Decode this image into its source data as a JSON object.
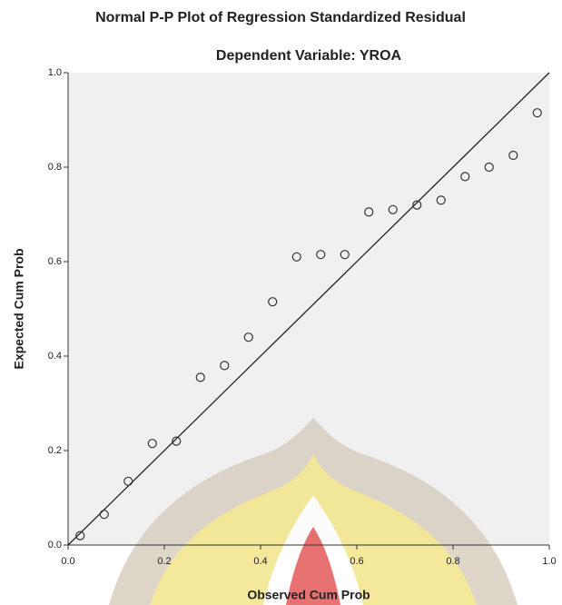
{
  "chart_data": {
    "type": "scatter",
    "title": "Normal P-P Plot of Regression Standardized Residual",
    "subtitle": "Dependent Variable: YROA",
    "xlabel": "Observed Cum Prob",
    "ylabel": "Expected Cum Prob",
    "x": [
      0.025,
      0.075,
      0.125,
      0.175,
      0.225,
      0.275,
      0.325,
      0.375,
      0.425,
      0.475,
      0.525,
      0.575,
      0.625,
      0.675,
      0.725,
      0.775,
      0.825,
      0.875,
      0.925,
      0.975
    ],
    "values": [
      0.02,
      0.065,
      0.135,
      0.215,
      0.22,
      0.355,
      0.38,
      0.44,
      0.515,
      0.61,
      0.615,
      0.615,
      0.705,
      0.71,
      0.72,
      0.73,
      0.78,
      0.8,
      0.825,
      0.915
    ],
    "color": "#333333",
    "xlim": [
      0,
      1
    ],
    "ylim": [
      0,
      1
    ],
    "xticks": [
      {
        "value": 0,
        "label": "0.0"
      },
      0.2,
      0.4,
      0.6,
      0.8,
      {
        "value": 1,
        "label": "1.0"
      }
    ],
    "yticks": [
      {
        "value": 0,
        "label": "0.0"
      },
      0.2,
      0.4,
      0.6,
      0.8,
      {
        "value": 1,
        "label": "1.0"
      }
    ],
    "grid": false
  }
}
